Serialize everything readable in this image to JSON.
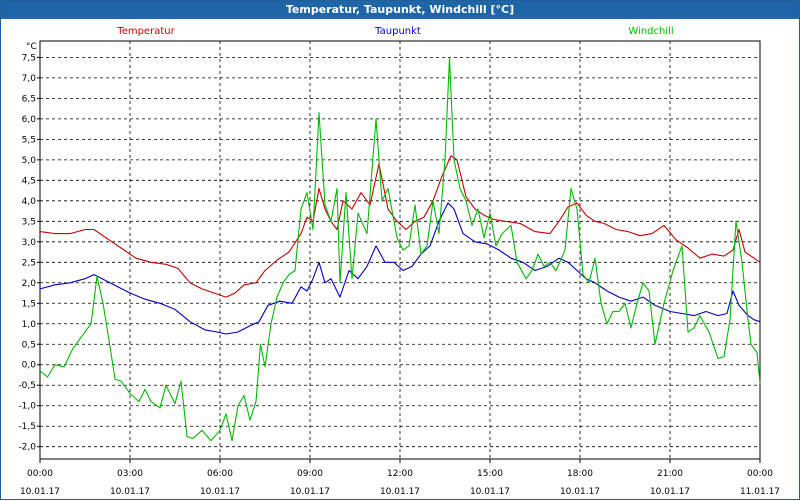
{
  "window": {
    "title": "Temperatur, Taupunkt, Windchill [°C]"
  },
  "chart_data": {
    "type": "line",
    "title": "Temperatur, Taupunkt, Windchill [°C]",
    "ylabel": "°C",
    "ylim": [
      -2.0,
      7.5
    ],
    "y_ticks": [
      "7,5",
      "7,0",
      "6,5",
      "6,0",
      "5,5",
      "5,0",
      "4,5",
      "4,0",
      "3,5",
      "3,0",
      "2,5",
      "2,0",
      "1,5",
      "1,0",
      "0,5",
      "0,0",
      "-0,5",
      "-1,0",
      "-1,5",
      "-2,0"
    ],
    "x_ticks": [
      {
        "time": "00:00",
        "date": "10.01.17"
      },
      {
        "time": "03:00",
        "date": "10.01.17"
      },
      {
        "time": "06:00",
        "date": "10.01.17"
      },
      {
        "time": "09:00",
        "date": "10.01.17"
      },
      {
        "time": "12:00",
        "date": "10.01.17"
      },
      {
        "time": "15:00",
        "date": "10.01.17"
      },
      {
        "time": "18:00",
        "date": "10.01.17"
      },
      {
        "time": "21:00",
        "date": "10.01.17"
      },
      {
        "time": "00:00",
        "date": "11.01.17"
      }
    ],
    "x_range_hours": [
      0,
      24
    ],
    "grid": true,
    "legend_placement": "top",
    "series": [
      {
        "name": "Temperatur",
        "color": "#cc0000",
        "points": [
          [
            0,
            3.25
          ],
          [
            0.5,
            3.2
          ],
          [
            1,
            3.2
          ],
          [
            1.5,
            3.3
          ],
          [
            1.8,
            3.3
          ],
          [
            2.3,
            3.05
          ],
          [
            2.8,
            2.8
          ],
          [
            3.2,
            2.6
          ],
          [
            3.7,
            2.5
          ],
          [
            4.2,
            2.45
          ],
          [
            4.6,
            2.35
          ],
          [
            5.0,
            2.0
          ],
          [
            5.4,
            1.85
          ],
          [
            5.8,
            1.75
          ],
          [
            6.2,
            1.65
          ],
          [
            6.5,
            1.75
          ],
          [
            6.8,
            1.95
          ],
          [
            7.2,
            2.0
          ],
          [
            7.5,
            2.3
          ],
          [
            7.9,
            2.55
          ],
          [
            8.3,
            2.75
          ],
          [
            8.7,
            3.2
          ],
          [
            8.9,
            3.6
          ],
          [
            9.1,
            3.5
          ],
          [
            9.3,
            4.3
          ],
          [
            9.5,
            3.8
          ],
          [
            9.7,
            3.5
          ],
          [
            9.9,
            3.3
          ],
          [
            10.1,
            4.0
          ],
          [
            10.4,
            3.8
          ],
          [
            10.7,
            4.2
          ],
          [
            11.0,
            3.9
          ],
          [
            11.3,
            4.9
          ],
          [
            11.6,
            3.8
          ],
          [
            11.9,
            3.5
          ],
          [
            12.2,
            3.3
          ],
          [
            12.5,
            3.5
          ],
          [
            12.8,
            3.6
          ],
          [
            13.1,
            4.0
          ],
          [
            13.4,
            4.6
          ],
          [
            13.7,
            5.1
          ],
          [
            13.9,
            5.0
          ],
          [
            14.2,
            4.1
          ],
          [
            14.5,
            3.8
          ],
          [
            14.8,
            3.65
          ],
          [
            15.1,
            3.55
          ],
          [
            15.5,
            3.5
          ],
          [
            16.0,
            3.45
          ],
          [
            16.5,
            3.25
          ],
          [
            17.0,
            3.2
          ],
          [
            17.3,
            3.5
          ],
          [
            17.6,
            3.85
          ],
          [
            17.9,
            3.95
          ],
          [
            18.2,
            3.65
          ],
          [
            18.5,
            3.5
          ],
          [
            18.8,
            3.45
          ],
          [
            19.2,
            3.3
          ],
          [
            19.6,
            3.25
          ],
          [
            20.0,
            3.15
          ],
          [
            20.4,
            3.2
          ],
          [
            20.8,
            3.4
          ],
          [
            21.2,
            3.05
          ],
          [
            21.6,
            2.85
          ],
          [
            22.0,
            2.6
          ],
          [
            22.4,
            2.7
          ],
          [
            22.8,
            2.65
          ],
          [
            23.1,
            2.8
          ],
          [
            23.3,
            3.3
          ],
          [
            23.5,
            2.75
          ],
          [
            23.7,
            2.65
          ],
          [
            24.0,
            2.5
          ]
        ]
      },
      {
        "name": "Taupunkt",
        "color": "#0000cc",
        "points": [
          [
            0,
            1.85
          ],
          [
            0.5,
            1.95
          ],
          [
            1.0,
            2.0
          ],
          [
            1.5,
            2.1
          ],
          [
            1.8,
            2.2
          ],
          [
            2.2,
            2.05
          ],
          [
            2.6,
            1.9
          ],
          [
            3.0,
            1.75
          ],
          [
            3.5,
            1.6
          ],
          [
            4.0,
            1.5
          ],
          [
            4.5,
            1.35
          ],
          [
            5.0,
            1.05
          ],
          [
            5.5,
            0.85
          ],
          [
            5.9,
            0.8
          ],
          [
            6.2,
            0.75
          ],
          [
            6.6,
            0.8
          ],
          [
            7.0,
            0.95
          ],
          [
            7.3,
            1.05
          ],
          [
            7.6,
            1.45
          ],
          [
            8.0,
            1.55
          ],
          [
            8.4,
            1.5
          ],
          [
            8.7,
            1.9
          ],
          [
            8.9,
            1.8
          ],
          [
            9.1,
            2.1
          ],
          [
            9.3,
            2.5
          ],
          [
            9.5,
            2.0
          ],
          [
            9.7,
            2.1
          ],
          [
            10.0,
            1.65
          ],
          [
            10.3,
            2.3
          ],
          [
            10.6,
            2.1
          ],
          [
            10.9,
            2.4
          ],
          [
            11.2,
            2.9
          ],
          [
            11.5,
            2.5
          ],
          [
            11.8,
            2.5
          ],
          [
            12.1,
            2.3
          ],
          [
            12.4,
            2.4
          ],
          [
            12.7,
            2.7
          ],
          [
            13.0,
            2.9
          ],
          [
            13.3,
            3.5
          ],
          [
            13.6,
            3.95
          ],
          [
            13.8,
            3.8
          ],
          [
            14.1,
            3.2
          ],
          [
            14.5,
            3.0
          ],
          [
            14.9,
            2.95
          ],
          [
            15.3,
            2.8
          ],
          [
            15.7,
            2.6
          ],
          [
            16.1,
            2.5
          ],
          [
            16.5,
            2.3
          ],
          [
            16.9,
            2.4
          ],
          [
            17.3,
            2.6
          ],
          [
            17.6,
            2.5
          ],
          [
            17.9,
            2.3
          ],
          [
            18.2,
            2.1
          ],
          [
            18.5,
            2.0
          ],
          [
            18.9,
            1.8
          ],
          [
            19.3,
            1.65
          ],
          [
            19.7,
            1.55
          ],
          [
            20.1,
            1.65
          ],
          [
            20.5,
            1.45
          ],
          [
            21.0,
            1.3
          ],
          [
            21.4,
            1.25
          ],
          [
            21.8,
            1.2
          ],
          [
            22.2,
            1.3
          ],
          [
            22.6,
            1.2
          ],
          [
            22.9,
            1.25
          ],
          [
            23.1,
            1.8
          ],
          [
            23.3,
            1.45
          ],
          [
            23.6,
            1.2
          ],
          [
            23.8,
            1.1
          ],
          [
            24.0,
            1.05
          ]
        ]
      },
      {
        "name": "Windchill",
        "color": "#00bb00",
        "points": [
          [
            0,
            -0.15
          ],
          [
            0.25,
            -0.3
          ],
          [
            0.5,
            0.0
          ],
          [
            0.8,
            -0.05
          ],
          [
            1.1,
            0.4
          ],
          [
            1.4,
            0.7
          ],
          [
            1.7,
            1.0
          ],
          [
            1.9,
            2.15
          ],
          [
            2.1,
            1.5
          ],
          [
            2.3,
            0.6
          ],
          [
            2.5,
            -0.35
          ],
          [
            2.7,
            -0.4
          ],
          [
            3.0,
            -0.7
          ],
          [
            3.3,
            -0.9
          ],
          [
            3.5,
            -0.6
          ],
          [
            3.7,
            -0.9
          ],
          [
            4.0,
            -1.05
          ],
          [
            4.2,
            -0.5
          ],
          [
            4.5,
            -0.95
          ],
          [
            4.7,
            -0.4
          ],
          [
            4.9,
            -1.75
          ],
          [
            5.1,
            -1.8
          ],
          [
            5.4,
            -1.6
          ],
          [
            5.7,
            -1.85
          ],
          [
            6.0,
            -1.6
          ],
          [
            6.2,
            -1.2
          ],
          [
            6.4,
            -1.85
          ],
          [
            6.6,
            -1.0
          ],
          [
            6.8,
            -0.75
          ],
          [
            7.0,
            -1.35
          ],
          [
            7.2,
            -0.9
          ],
          [
            7.35,
            0.5
          ],
          [
            7.5,
            -0.05
          ],
          [
            7.7,
            1.0
          ],
          [
            7.9,
            1.65
          ],
          [
            8.1,
            2.0
          ],
          [
            8.3,
            2.2
          ],
          [
            8.5,
            2.3
          ],
          [
            8.7,
            3.8
          ],
          [
            8.9,
            4.2
          ],
          [
            9.1,
            3.3
          ],
          [
            9.3,
            6.15
          ],
          [
            9.5,
            3.9
          ],
          [
            9.7,
            3.5
          ],
          [
            9.9,
            4.3
          ],
          [
            10.0,
            2.0
          ],
          [
            10.2,
            4.2
          ],
          [
            10.4,
            2.1
          ],
          [
            10.6,
            3.7
          ],
          [
            10.9,
            3.2
          ],
          [
            11.2,
            6.0
          ],
          [
            11.4,
            4.0
          ],
          [
            11.6,
            4.3
          ],
          [
            11.9,
            3.1
          ],
          [
            12.1,
            2.8
          ],
          [
            12.3,
            2.9
          ],
          [
            12.5,
            3.9
          ],
          [
            12.7,
            2.7
          ],
          [
            12.9,
            2.9
          ],
          [
            13.1,
            4.0
          ],
          [
            13.3,
            3.2
          ],
          [
            13.5,
            5.0
          ],
          [
            13.65,
            7.5
          ],
          [
            13.8,
            5.0
          ],
          [
            14.0,
            4.3
          ],
          [
            14.2,
            4.0
          ],
          [
            14.4,
            3.4
          ],
          [
            14.6,
            3.8
          ],
          [
            14.8,
            3.1
          ],
          [
            15.0,
            3.7
          ],
          [
            15.2,
            2.9
          ],
          [
            15.4,
            3.2
          ],
          [
            15.7,
            3.4
          ],
          [
            15.9,
            2.5
          ],
          [
            16.2,
            2.1
          ],
          [
            16.4,
            2.3
          ],
          [
            16.6,
            2.7
          ],
          [
            16.8,
            2.4
          ],
          [
            17.0,
            2.5
          ],
          [
            17.2,
            2.3
          ],
          [
            17.5,
            2.8
          ],
          [
            17.7,
            4.3
          ],
          [
            17.9,
            3.8
          ],
          [
            18.1,
            2.2
          ],
          [
            18.3,
            2.0
          ],
          [
            18.5,
            2.6
          ],
          [
            18.7,
            1.5
          ],
          [
            18.9,
            1.0
          ],
          [
            19.1,
            1.3
          ],
          [
            19.3,
            1.3
          ],
          [
            19.5,
            1.5
          ],
          [
            19.7,
            0.9
          ],
          [
            19.9,
            1.5
          ],
          [
            20.1,
            2.0
          ],
          [
            20.3,
            1.8
          ],
          [
            20.5,
            0.5
          ],
          [
            20.8,
            1.5
          ],
          [
            21.1,
            2.3
          ],
          [
            21.4,
            2.9
          ],
          [
            21.6,
            0.8
          ],
          [
            21.8,
            0.9
          ],
          [
            22.0,
            1.2
          ],
          [
            22.3,
            0.8
          ],
          [
            22.6,
            0.15
          ],
          [
            22.8,
            0.2
          ],
          [
            23.0,
            1.1
          ],
          [
            23.2,
            3.5
          ],
          [
            23.4,
            2.5
          ],
          [
            23.6,
            1.1
          ],
          [
            23.7,
            0.5
          ],
          [
            23.9,
            0.3
          ],
          [
            24.0,
            -0.45
          ]
        ]
      }
    ]
  }
}
